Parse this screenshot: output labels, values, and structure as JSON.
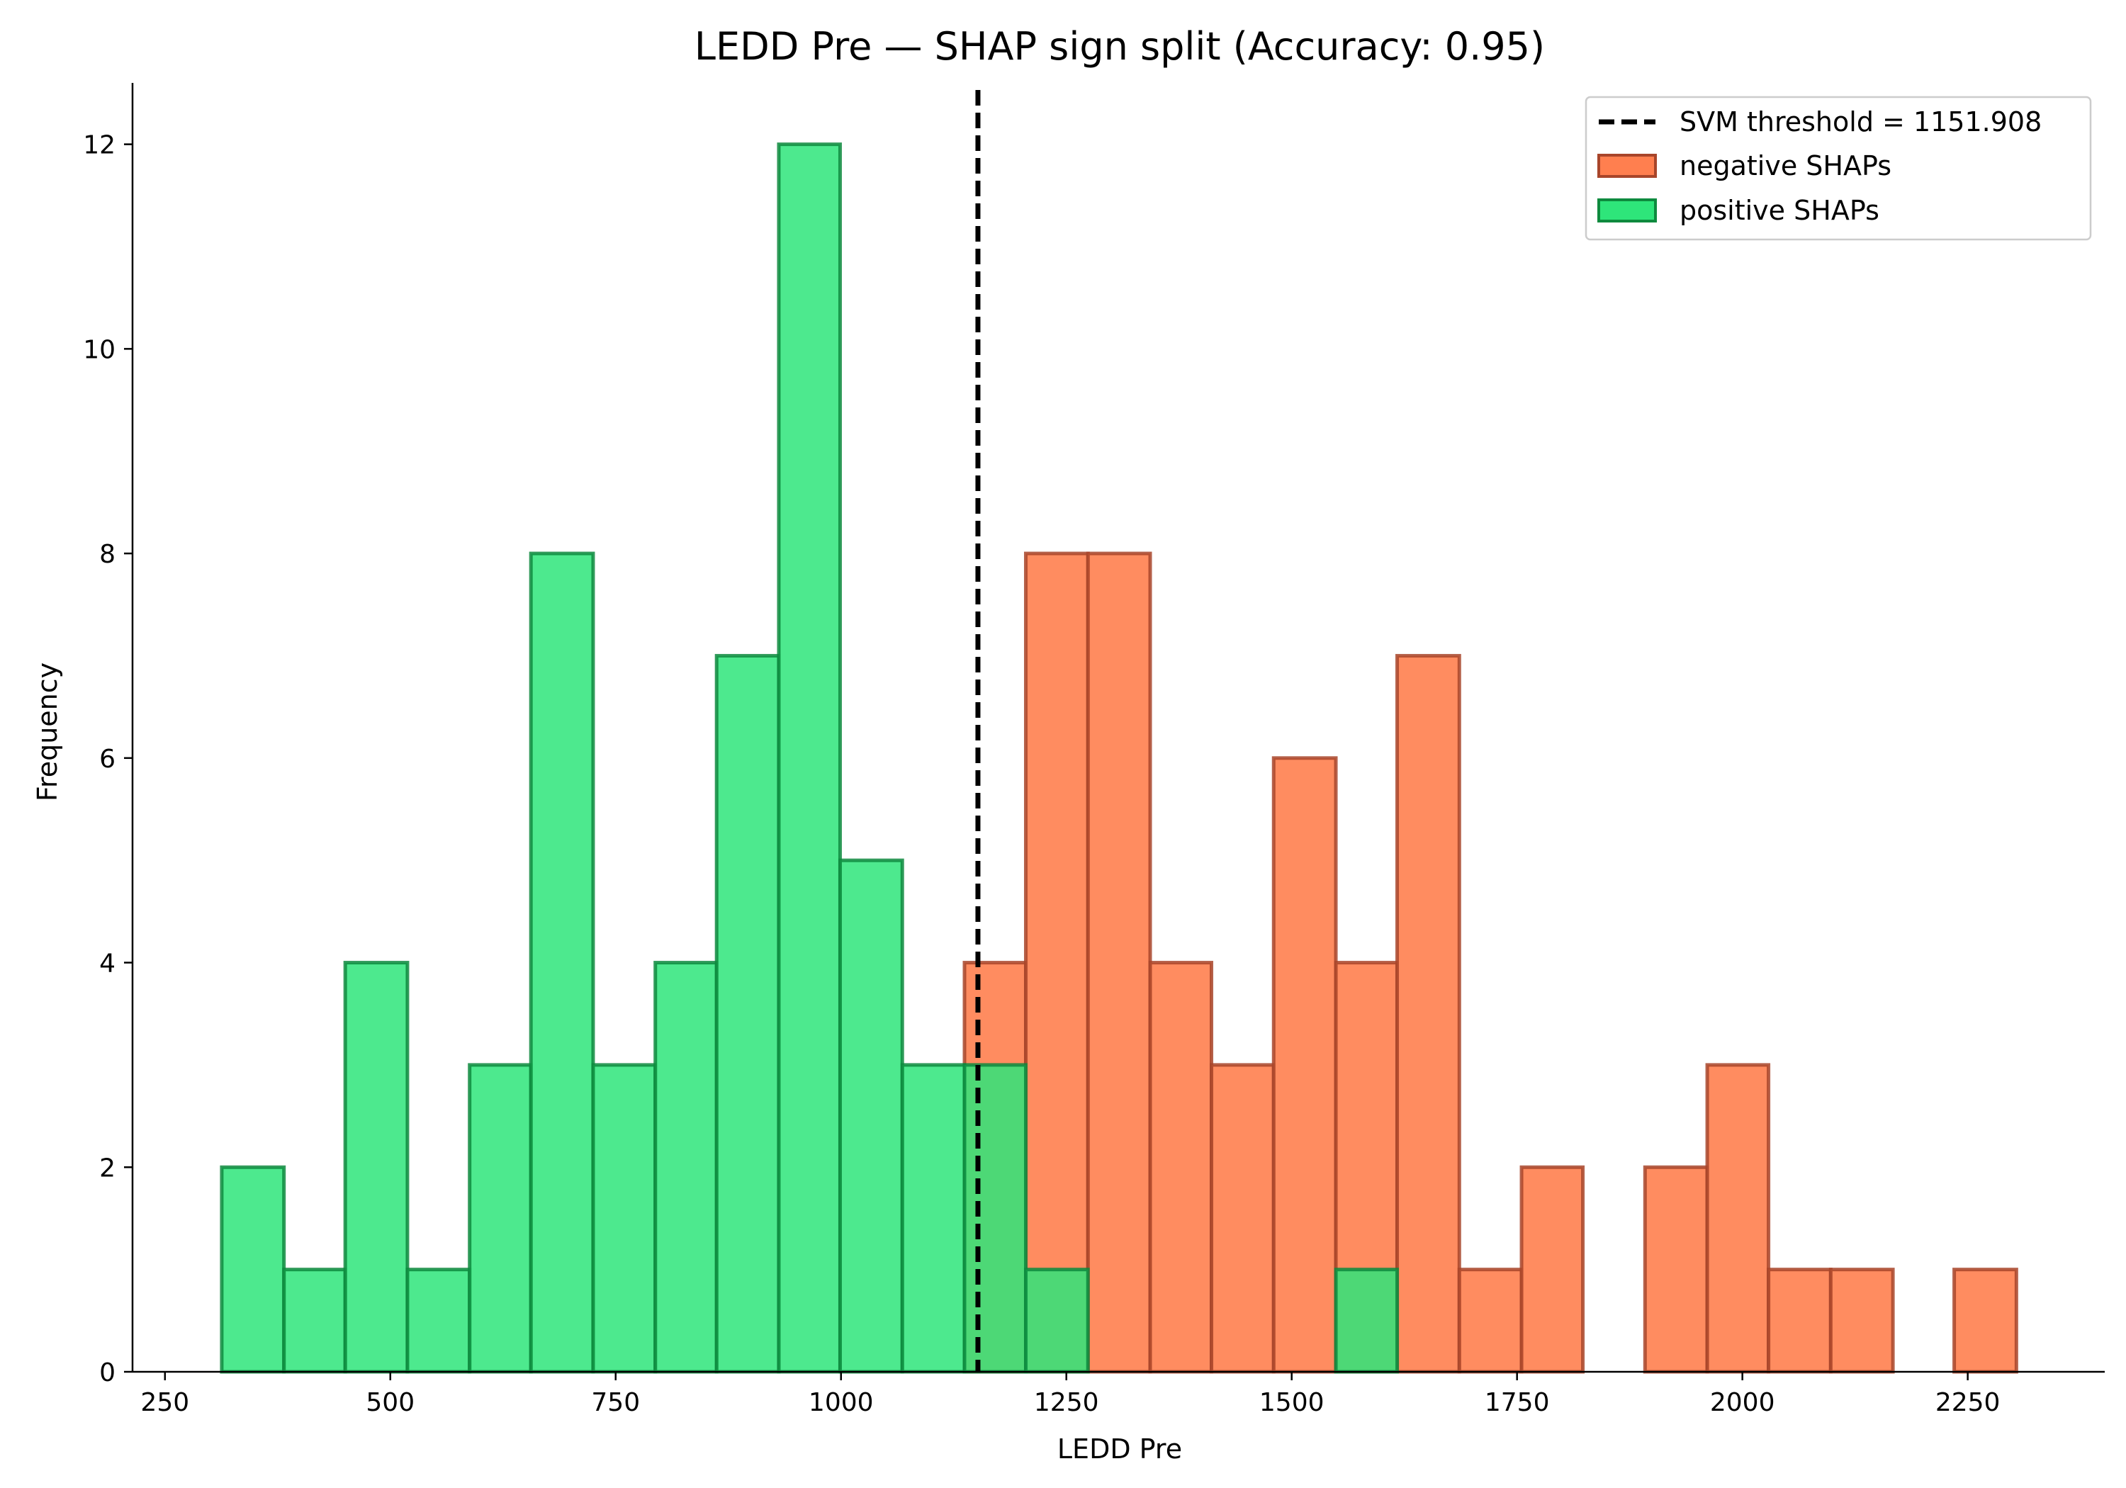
{
  "chart_data": {
    "type": "histogram",
    "title": "LEDD Pre — SHAP sign split (Accuracy: 0.95)",
    "xlabel": "LEDD Pre",
    "ylabel": "Frequency",
    "xlim": [
      214,
      2402
    ],
    "ylim": [
      0,
      12.6
    ],
    "xticks": [
      250,
      500,
      750,
      1000,
      1250,
      1500,
      1750,
      2000,
      2250
    ],
    "yticks": [
      0,
      2,
      4,
      6,
      8,
      10,
      12
    ],
    "bin_edges": [
      313,
      382,
      450,
      519,
      588,
      656,
      725,
      794,
      862,
      931,
      999,
      1068,
      1137,
      1205,
      1274,
      1343,
      1411,
      1480,
      1549,
      1617,
      1686,
      1755,
      1823,
      1892,
      1961,
      2029,
      2098,
      2167,
      2235,
      2304
    ],
    "threshold": {
      "value": 1151.908,
      "label": "SVM threshold = 1151.908"
    },
    "grid": false,
    "legend_position": "upper right",
    "series": [
      {
        "name": "negative SHAPs",
        "color": "#ff7f4f",
        "edge": "#a8452a",
        "values": [
          0,
          0,
          0,
          0,
          0,
          0,
          0,
          0,
          0,
          0,
          0,
          0,
          4,
          8,
          8,
          4,
          3,
          6,
          4,
          7,
          1,
          2,
          0,
          2,
          3,
          1,
          1,
          0,
          1
        ]
      },
      {
        "name": "positive SHAPs",
        "color": "#2ee57a",
        "edge": "#0e8a3e",
        "values": [
          2,
          1,
          4,
          1,
          3,
          8,
          3,
          4,
          7,
          12,
          5,
          3,
          3,
          1,
          0,
          0,
          0,
          0,
          1,
          0,
          0,
          0,
          0,
          0,
          0,
          0,
          0,
          0,
          0
        ]
      }
    ]
  }
}
